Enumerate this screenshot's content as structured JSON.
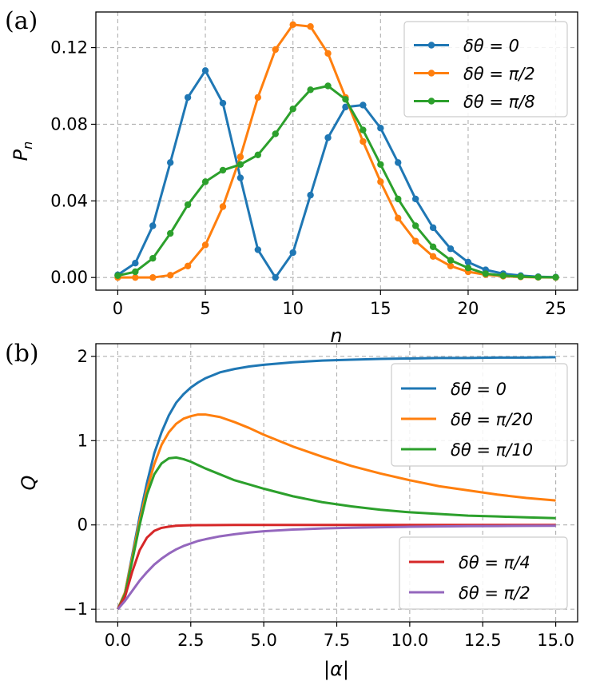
{
  "chart_data": [
    {
      "type": "line",
      "panel_label": "(a)",
      "xlabel": "n",
      "ylabel": "P",
      "ylabel_sub": "n",
      "xlim": [
        -1.25,
        26.25
      ],
      "ylim": [
        -0.0066,
        0.1386
      ],
      "xticks": [
        0,
        5,
        10,
        15,
        20,
        25
      ],
      "xtick_labels": [
        "0",
        "5",
        "10",
        "15",
        "20",
        "25"
      ],
      "yticks": [
        0.0,
        0.04,
        0.08,
        0.12
      ],
      "ytick_labels": [
        "0.00",
        "0.04",
        "0.08",
        "0.12"
      ],
      "grid": true,
      "markers": true,
      "legend_position": "top-right",
      "x": [
        0,
        1,
        2,
        3,
        4,
        5,
        6,
        7,
        8,
        9,
        10,
        11,
        12,
        13,
        14,
        15,
        16,
        17,
        18,
        19,
        20,
        21,
        22,
        23,
        24,
        25
      ],
      "series": [
        {
          "name": "δθ = 0",
          "color": "#1f77b4",
          "values": [
            0.0014,
            0.0075,
            0.027,
            0.06,
            0.094,
            0.108,
            0.091,
            0.052,
            0.0145,
            0.0,
            0.013,
            0.043,
            0.073,
            0.089,
            0.09,
            0.078,
            0.06,
            0.041,
            0.026,
            0.015,
            0.008,
            0.004,
            0.002,
            0.001,
            0.0004,
            0.0002
          ]
        },
        {
          "name": "δθ = π/2",
          "color": "#ff7f0e",
          "values": [
            0.0,
            0.0,
            0.0,
            0.0012,
            0.006,
            0.017,
            0.037,
            0.063,
            0.094,
            0.119,
            0.132,
            0.131,
            0.117,
            0.094,
            0.071,
            0.05,
            0.031,
            0.019,
            0.011,
            0.006,
            0.003,
            0.0015,
            0.0007,
            0.0003,
            0.0001,
            0.0
          ]
        },
        {
          "name": "δθ = π/8",
          "color": "#2ca02c",
          "values": [
            0.001,
            0.003,
            0.01,
            0.023,
            0.038,
            0.05,
            0.056,
            0.059,
            0.064,
            0.075,
            0.088,
            0.098,
            0.1,
            0.093,
            0.077,
            0.059,
            0.041,
            0.027,
            0.016,
            0.009,
            0.005,
            0.002,
            0.001,
            0.0005,
            0.0002,
            0.0001
          ]
        }
      ]
    },
    {
      "type": "line",
      "panel_label": "(b)",
      "xlabel": "|α|",
      "ylabel": "Q",
      "xlim": [
        -0.75,
        15.75
      ],
      "ylim": [
        -1.15,
        2.15
      ],
      "xticks": [
        0,
        2.5,
        5,
        7.5,
        10,
        12.5,
        15
      ],
      "xtick_labels": [
        "0.0",
        "2.5",
        "5.0",
        "7.5",
        "10.0",
        "12.5",
        "15.0"
      ],
      "yticks": [
        -1,
        0,
        1,
        2
      ],
      "ytick_labels": [
        "−1",
        "0",
        "1",
        "2"
      ],
      "grid": true,
      "markers": false,
      "legends": [
        {
          "position": "upper-right",
          "entries": [
            "δθ = 0",
            "δθ = π/20",
            "δθ = π/10"
          ]
        },
        {
          "position": "lower-right",
          "entries": [
            "δθ = π/4",
            "δθ = π/2"
          ]
        }
      ],
      "x": [
        0,
        0.25,
        0.5,
        0.75,
        1,
        1.25,
        1.5,
        1.75,
        2,
        2.25,
        2.5,
        2.75,
        3,
        3.5,
        4,
        4.5,
        5,
        6,
        7,
        8,
        9,
        10,
        11,
        12,
        13,
        14,
        15
      ],
      "series": [
        {
          "name": "δθ = 0",
          "color": "#1f77b4",
          "values": [
            -1,
            -0.8,
            -0.35,
            0.1,
            0.5,
            0.85,
            1.1,
            1.3,
            1.45,
            1.55,
            1.63,
            1.69,
            1.74,
            1.81,
            1.85,
            1.88,
            1.9,
            1.93,
            1.95,
            1.96,
            1.97,
            1.975,
            1.98,
            1.98,
            1.985,
            1.985,
            1.99
          ]
        },
        {
          "name": "δθ = π/20",
          "color": "#ff7f0e",
          "values": [
            -1,
            -0.8,
            -0.38,
            0.05,
            0.42,
            0.72,
            0.95,
            1.1,
            1.2,
            1.26,
            1.29,
            1.31,
            1.31,
            1.28,
            1.22,
            1.15,
            1.07,
            0.93,
            0.81,
            0.7,
            0.61,
            0.53,
            0.46,
            0.41,
            0.36,
            0.32,
            0.29
          ]
        },
        {
          "name": "δθ = π/10",
          "color": "#2ca02c",
          "values": [
            -1,
            -0.82,
            -0.42,
            0.0,
            0.36,
            0.6,
            0.73,
            0.79,
            0.8,
            0.78,
            0.75,
            0.71,
            0.67,
            0.6,
            0.53,
            0.48,
            0.43,
            0.34,
            0.27,
            0.22,
            0.18,
            0.15,
            0.13,
            0.11,
            0.1,
            0.09,
            0.08
          ]
        },
        {
          "name": "δθ = π/4",
          "color": "#d62728",
          "values": [
            -1,
            -0.85,
            -0.55,
            -0.3,
            -0.15,
            -0.07,
            -0.035,
            -0.02,
            -0.01,
            -0.006,
            -0.004,
            -0.003,
            -0.002,
            -0.001,
            0,
            0,
            0,
            0,
            0,
            0,
            0,
            0,
            0,
            0,
            0,
            0,
            0
          ]
        },
        {
          "name": "δθ = π/2",
          "color": "#9467bd",
          "values": [
            -1,
            -0.9,
            -0.78,
            -0.66,
            -0.56,
            -0.47,
            -0.4,
            -0.34,
            -0.29,
            -0.25,
            -0.22,
            -0.19,
            -0.17,
            -0.135,
            -0.11,
            -0.09,
            -0.075,
            -0.055,
            -0.042,
            -0.033,
            -0.027,
            -0.022,
            -0.018,
            -0.015,
            -0.013,
            -0.011,
            -0.01
          ]
        }
      ]
    }
  ]
}
